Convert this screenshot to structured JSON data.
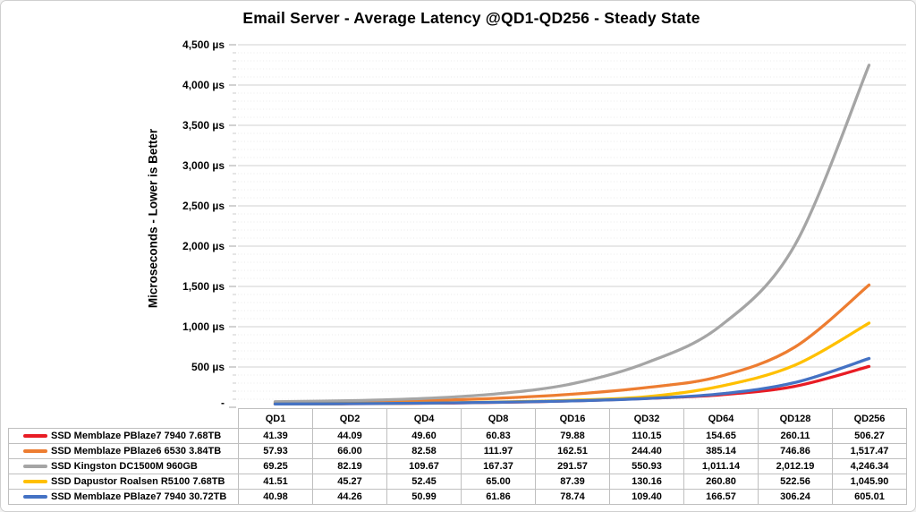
{
  "title": "Email Server - Average Latency @QD1-QD256 - Steady State",
  "chart_data": {
    "type": "line",
    "title": "Email Server - Average Latency @QD1-QD256 - Steady State",
    "ylabel": "Microseconds  -  Lower is Better",
    "xlabel": "",
    "categories": [
      "QD1",
      "QD2",
      "QD4",
      "QD8",
      "QD16",
      "QD32",
      "QD64",
      "QD128",
      "QD256"
    ],
    "series": [
      {
        "name": "SSD Memblaze PBlaze7 7940 7.68TB",
        "color": "#e81c24",
        "values": [
          41.39,
          44.09,
          49.6,
          60.83,
          79.88,
          110.15,
          154.65,
          260.11,
          506.27
        ]
      },
      {
        "name": "SSD Memblaze PBlaze6 6530 3.84TB",
        "color": "#ed7d31",
        "values": [
          57.93,
          66.0,
          82.58,
          111.97,
          162.51,
          244.4,
          385.14,
          746.86,
          1517.47
        ]
      },
      {
        "name": "SSD Kingston DC1500M 960GB",
        "color": "#a5a5a5",
        "values": [
          69.25,
          82.19,
          109.67,
          167.37,
          291.57,
          550.93,
          1011.14,
          2012.19,
          4246.34
        ]
      },
      {
        "name": "SSD Dapustor Roalsen R5100 7.68TB",
        "color": "#ffc000",
        "values": [
          41.51,
          45.27,
          52.45,
          65.0,
          87.39,
          130.16,
          260.8,
          522.56,
          1045.9
        ]
      },
      {
        "name": "SSD Memblaze PBlaze7 7940 30.72TB",
        "color": "#4472c4",
        "values": [
          40.98,
          44.26,
          50.99,
          61.86,
          78.74,
          109.4,
          166.57,
          306.24,
          605.01
        ]
      }
    ],
    "ylim": [
      0,
      4500
    ],
    "y_major_step": 500,
    "y_minor_step": 100,
    "y_tick_labels": [
      "-",
      "500 µs",
      "1,000 µs",
      "1,500 µs",
      "2,000 µs",
      "2,500 µs",
      "3,000 µs",
      "3,500 µs",
      "4,000 µs",
      "4,500 µs"
    ],
    "grid": "horizontal-major-solid-minor-dotted",
    "legend_position": "data-table-left",
    "colors": {
      "major_gridline": "#d9d9d9",
      "minor_gridline": "#ebebeb",
      "table_border": "#bfbfbf",
      "tick_major": "#a6a6a6",
      "tick_minor": "#cccccc"
    }
  }
}
